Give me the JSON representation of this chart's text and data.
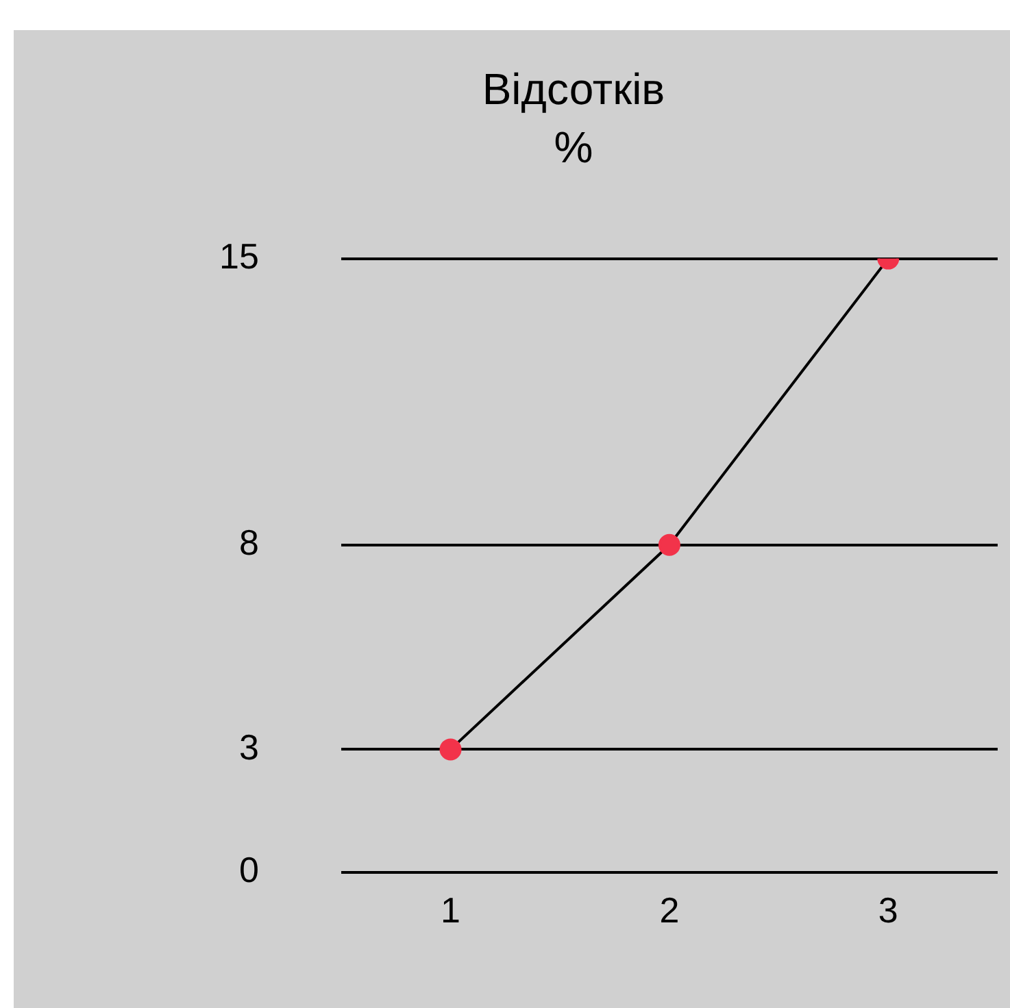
{
  "chart_data": {
    "type": "line",
    "title": "Відсотків",
    "subtitle": "%",
    "categories": [
      "1",
      "2",
      "3"
    ],
    "series": [
      {
        "color": "#000000",
        "colors": [
          "#f2334a",
          "#f2334a",
          "#f2334a"
        ],
        "values": [
          3,
          8,
          15
        ]
      }
    ],
    "ylim": [
      0,
      15
    ],
    "yticks": [
      0,
      3,
      8,
      15
    ],
    "grid": "y",
    "legend": false,
    "marker": "circle",
    "line_style": "solid"
  }
}
